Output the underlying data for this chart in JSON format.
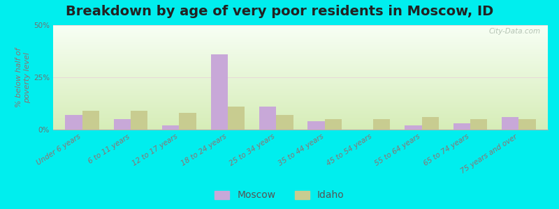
{
  "title": "Breakdown by age of very poor residents in Moscow, ID",
  "ylabel": "% below half of\npoverty level",
  "categories": [
    "Under 6 years",
    "6 to 11 years",
    "12 to 17 years",
    "18 to 24 years",
    "25 to 34 years",
    "35 to 44 years",
    "45 to 54 years",
    "55 to 64 years",
    "65 to 74 years",
    "75 years and over"
  ],
  "moscow_values": [
    7.0,
    5.0,
    2.0,
    36.0,
    11.0,
    4.0,
    0.0,
    2.0,
    3.0,
    6.0
  ],
  "idaho_values": [
    9.0,
    9.0,
    8.0,
    11.0,
    7.0,
    5.0,
    5.0,
    6.0,
    5.0,
    5.0
  ],
  "moscow_color": "#c8a8d8",
  "idaho_color": "#c8cc90",
  "background_color": "#00eeee",
  "ylim": [
    0,
    50
  ],
  "yticks": [
    0,
    25,
    50
  ],
  "ytick_labels": [
    "0%",
    "25%",
    "50%"
  ],
  "bar_width": 0.35,
  "title_fontsize": 14,
  "axis_label_fontsize": 8,
  "tick_fontsize": 7.5,
  "legend_fontsize": 10,
  "watermark_text": "City-Data.com"
}
